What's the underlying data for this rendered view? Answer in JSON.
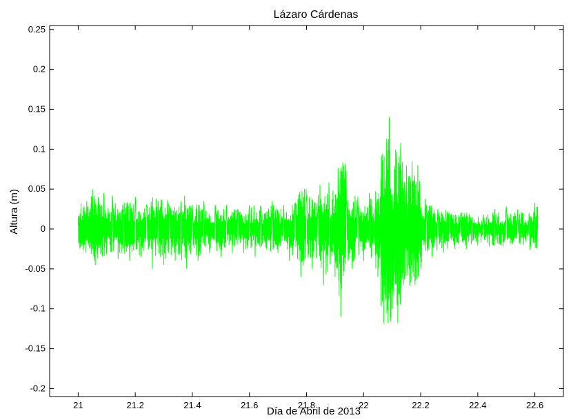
{
  "chart_data": {
    "type": "line",
    "title": "Lázaro Cárdenas",
    "xlabel": "Día de Abril de 2013",
    "ylabel": "Altura (m)",
    "xlim": [
      20.9,
      22.7
    ],
    "ylim": [
      -0.21,
      0.255
    ],
    "xticks": [
      21,
      21.2,
      21.4,
      21.6,
      21.8,
      22,
      22.2,
      22.4,
      22.6
    ],
    "xtick_labels": [
      "21",
      "21.2",
      "21.4",
      "21.6",
      "21.8",
      "22",
      "22.2",
      "22.4",
      "22.6"
    ],
    "yticks": [
      -0.2,
      -0.15,
      -0.1,
      -0.05,
      0,
      0.05,
      0.1,
      0.15,
      0.2,
      0.25
    ],
    "ytick_labels": [
      "-0.2",
      "-0.15",
      "-0.1",
      "-0.05",
      "0",
      "0.05",
      "0.1",
      "0.15",
      "0.2",
      "0.25"
    ],
    "grid": false,
    "series": [
      {
        "color": "#00ff00",
        "x": [
          21.0,
          21.01,
          21.02,
          21.03,
          21.04,
          21.05,
          21.06,
          21.07,
          21.08,
          21.09,
          21.1,
          21.12,
          21.14,
          21.16,
          21.18,
          21.2,
          21.22,
          21.24,
          21.26,
          21.28,
          21.3,
          21.32,
          21.34,
          21.36,
          21.38,
          21.4,
          21.42,
          21.44,
          21.46,
          21.48,
          21.5,
          21.52,
          21.54,
          21.56,
          21.58,
          21.6,
          21.62,
          21.64,
          21.66,
          21.68,
          21.7,
          21.72,
          21.74,
          21.76,
          21.78,
          21.8,
          21.82,
          21.84,
          21.86,
          21.88,
          21.9,
          21.91,
          21.92,
          21.94,
          21.96,
          21.98,
          22.0,
          22.02,
          22.03,
          22.04,
          22.05,
          22.06,
          22.07,
          22.08,
          22.09,
          22.1,
          22.11,
          22.12,
          22.13,
          22.14,
          22.15,
          22.16,
          22.17,
          22.18,
          22.19,
          22.2,
          22.22,
          22.24,
          22.26,
          22.28,
          22.3,
          22.32,
          22.34,
          22.36,
          22.38,
          22.4,
          22.42,
          22.44,
          22.46,
          22.48,
          22.5,
          22.52,
          22.54,
          22.56,
          22.58,
          22.6,
          22.61
        ],
        "y": [
          0.005,
          0.032,
          -0.02,
          0.035,
          -0.015,
          0.05,
          -0.045,
          0.04,
          -0.02,
          0.045,
          -0.03,
          0.042,
          -0.038,
          0.025,
          -0.04,
          0.04,
          -0.035,
          0.03,
          -0.05,
          0.035,
          -0.045,
          0.03,
          -0.04,
          0.035,
          -0.05,
          0.03,
          -0.04,
          0.035,
          -0.03,
          0.03,
          -0.035,
          0.03,
          -0.03,
          0.025,
          -0.03,
          0.03,
          -0.035,
          0.028,
          -0.025,
          0.035,
          -0.03,
          0.03,
          -0.04,
          0.025,
          -0.06,
          0.035,
          -0.05,
          0.03,
          -0.07,
          0.025,
          -0.06,
          0.03,
          -0.11,
          0.035,
          -0.05,
          0.04,
          -0.04,
          0.045,
          -0.01,
          0.025,
          -0.06,
          0.03,
          -0.118,
          0.06,
          0.14,
          -0.1,
          0.07,
          -0.118,
          0.108,
          -0.07,
          0.08,
          -0.05,
          0.085,
          -0.07,
          0.08,
          -0.05,
          0.03,
          -0.035,
          0.025,
          -0.03,
          0.02,
          -0.025,
          0.02,
          -0.025,
          0.015,
          -0.02,
          0.018,
          -0.022,
          0.025,
          -0.02,
          0.028,
          -0.018,
          0.025,
          -0.02,
          0.02,
          0.033,
          0.0
        ]
      }
    ]
  }
}
